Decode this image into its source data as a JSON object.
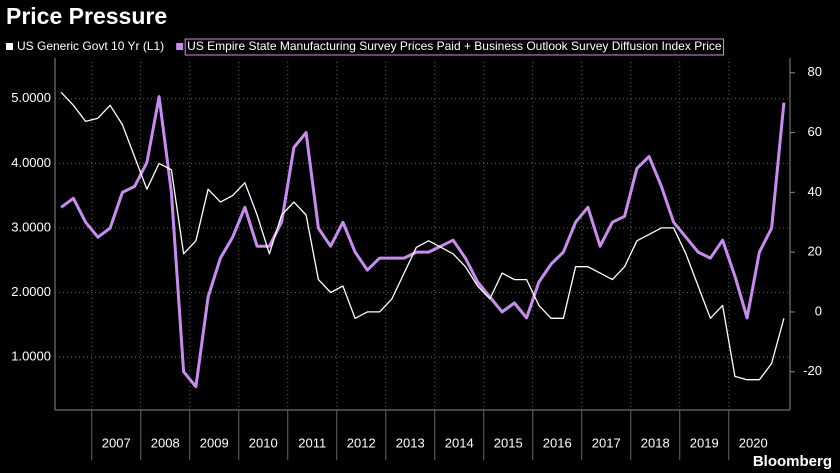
{
  "chart_data": {
    "type": "line",
    "title": "Price Pressure",
    "source": "Bloomberg",
    "categories": [
      null,
      null,
      null,
      "2007",
      null,
      null,
      null,
      "2008",
      null,
      null,
      null,
      "2009",
      null,
      null,
      null,
      "2010",
      null,
      null,
      null,
      "2011",
      null,
      null,
      null,
      "2012",
      null,
      null,
      null,
      "2013",
      null,
      null,
      null,
      "2014",
      null,
      null,
      null,
      "2015",
      null,
      null,
      null,
      "2016",
      null,
      null,
      null,
      "2017",
      null,
      null,
      null,
      "2018",
      null,
      null,
      null,
      "2019",
      null,
      null,
      null,
      "2020",
      null,
      null,
      null,
      null
    ],
    "series": [
      {
        "name": "US Generic Govt 10 Yr  (L1)",
        "color": "#ffffff",
        "values": [
          5.1,
          4.9,
          4.65,
          4.7,
          4.9,
          4.6,
          4.1,
          3.6,
          4.0,
          3.9,
          2.6,
          2.8,
          3.6,
          3.4,
          3.5,
          3.7,
          3.2,
          2.6,
          3.2,
          3.4,
          3.2,
          2.2,
          2.0,
          2.1,
          1.6,
          1.7,
          1.7,
          1.9,
          2.3,
          2.7,
          2.8,
          2.7,
          2.6,
          2.4,
          2.1,
          1.9,
          2.3,
          2.2,
          2.2,
          1.8,
          1.6,
          1.6,
          2.4,
          2.4,
          2.3,
          2.2,
          2.4,
          2.8,
          2.9,
          3.0,
          3.0,
          2.6,
          2.1,
          1.6,
          1.8,
          0.7,
          0.65,
          0.65,
          0.9,
          1.6
        ]
      },
      {
        "name": "US Empire State Manufacturing Survey Prices Paid + Business Outlook Survey Diffusion Index Price",
        "color": "#c88cf0",
        "axis": "y2",
        "values": [
          35,
          38,
          30,
          25,
          28,
          40,
          42,
          50,
          72,
          40,
          -20,
          -25,
          5,
          18,
          25,
          35,
          22,
          22,
          30,
          55,
          60,
          28,
          22,
          30,
          20,
          14,
          18,
          18,
          18,
          20,
          20,
          22,
          24,
          18,
          10,
          5,
          0,
          3,
          -2,
          10,
          16,
          20,
          30,
          35,
          22,
          30,
          32,
          48,
          52,
          42,
          30,
          25,
          20,
          18,
          24,
          12,
          -2,
          20,
          28,
          70
        ]
      }
    ],
    "ylim": [
      0.18,
      5.57
    ],
    "yticks": [
      {
        "value": 1,
        "label": "1.0000"
      },
      {
        "value": 2,
        "label": "2.0000"
      },
      {
        "value": 3,
        "label": "3.0000"
      },
      {
        "value": 4,
        "label": "4.0000"
      },
      {
        "value": 5,
        "label": "5.0000"
      }
    ],
    "y2lim": [
      -32.8,
      83.6
    ],
    "y2ticks": [
      -20,
      0,
      20,
      40,
      60,
      80
    ],
    "grid": true
  }
}
